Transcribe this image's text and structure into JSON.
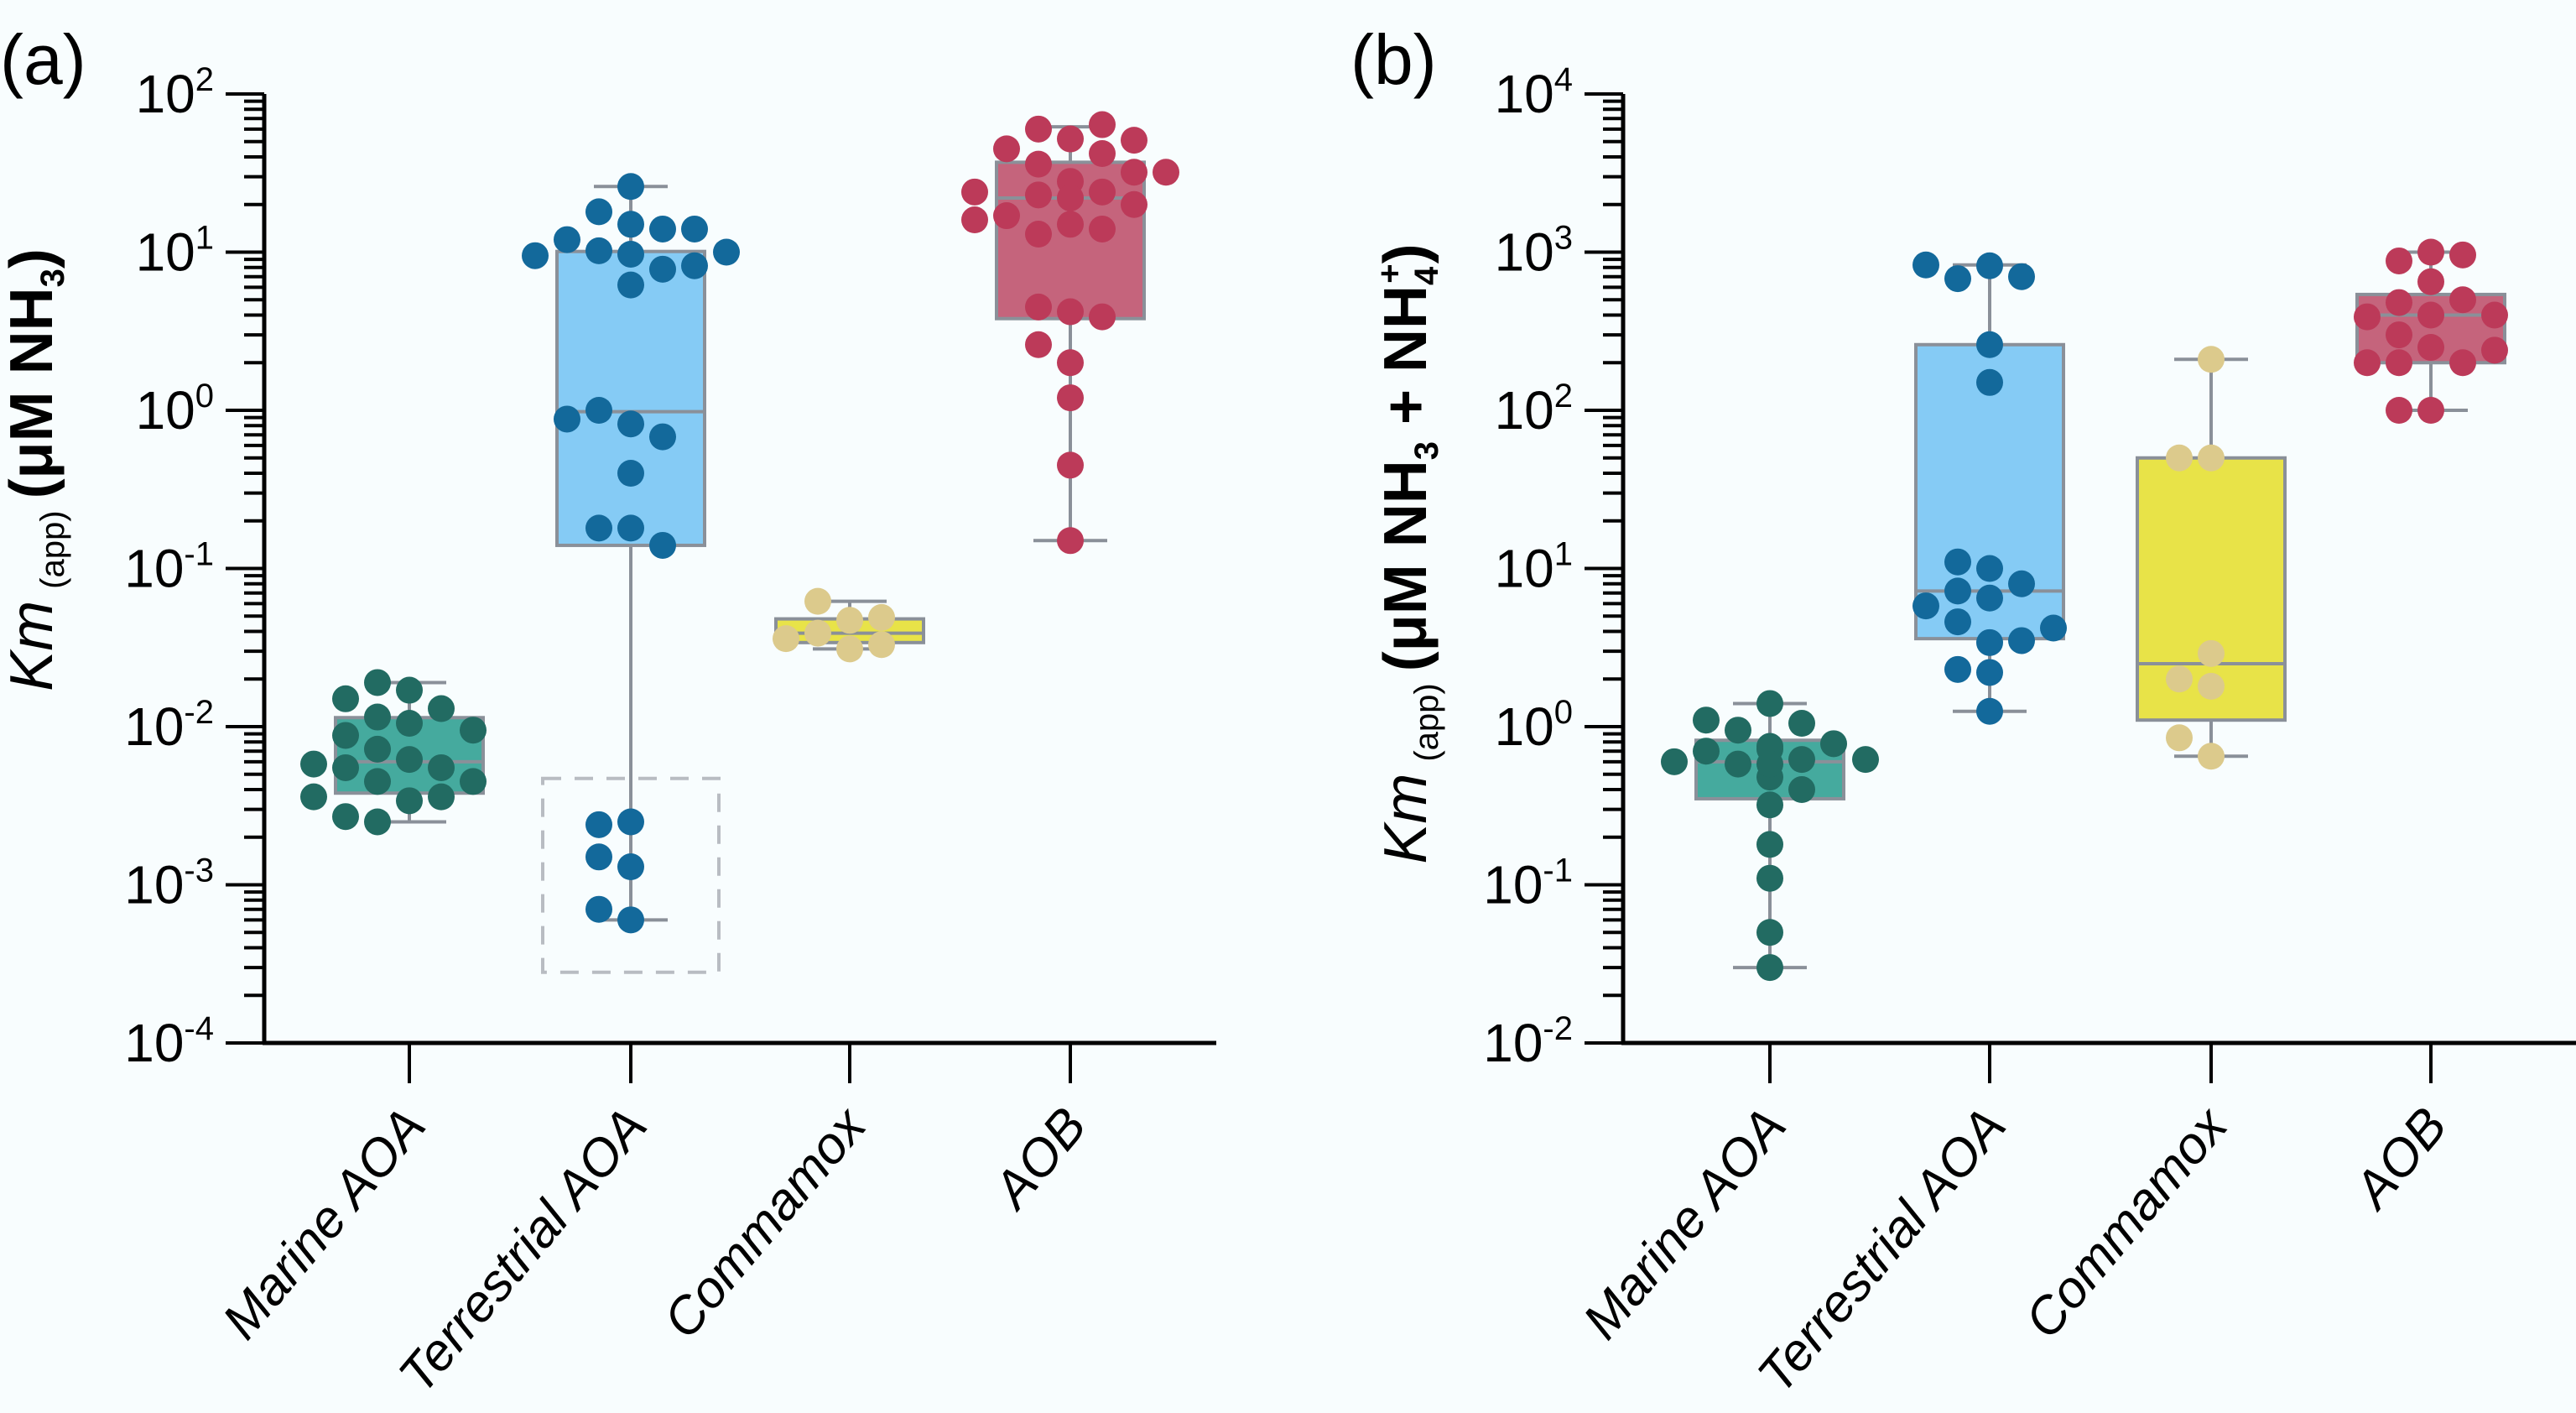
{
  "chart_data": [
    {
      "type": "box",
      "panel_label": "(a)",
      "title": "",
      "xlabel": "",
      "ylabel": "Km (app) (μM NH3)",
      "ylabel_parts": {
        "main": "Km",
        "sub": "(app)",
        "unit_open": "(μM NH",
        "unit_sub": "3",
        "unit_close": ")"
      },
      "yscale": "log",
      "ylim": [
        0.0001,
        100
      ],
      "y_ticks": [
        {
          "base": "10",
          "exp": "2",
          "value": 100
        },
        {
          "base": "10",
          "exp": "1",
          "value": 10
        },
        {
          "base": "10",
          "exp": "0",
          "value": 1
        },
        {
          "base": "10",
          "exp": "-1",
          "value": 0.1
        },
        {
          "base": "10",
          "exp": "-2",
          "value": 0.01
        },
        {
          "base": "10",
          "exp": "-3",
          "value": 0.001
        },
        {
          "base": "10",
          "exp": "-4",
          "value": 0.0001
        }
      ],
      "categories": [
        "Marine AOA",
        "Terrestrial AOA",
        "Commamox",
        "AOB"
      ],
      "grid": false,
      "series": [
        {
          "name": "Marine AOA",
          "fill": "#45aa9e",
          "point_color": "#226b62",
          "whisker_low": 0.0025,
          "q1": 0.0038,
          "median": 0.006,
          "q3": 0.0114,
          "whisker_high": 0.019,
          "points": [
            0.017,
            0.0115,
            0.0062,
            0.0045,
            0.0034,
            0.019,
            0.0105,
            0.0072,
            0.0055,
            0.0036,
            0.0025,
            0.013,
            0.0088,
            0.0055,
            0.0045,
            0.0027,
            0.015,
            0.0095,
            0.0058,
            0.0036
          ]
        },
        {
          "name": "Terrestrial AOA",
          "fill": "#85cbf5",
          "point_color": "#13699b",
          "whisker_low": 0.0006,
          "q1": 0.14,
          "median": 0.98,
          "q3": 10.1,
          "whisker_high": 26,
          "points": [
            15,
            10.2,
            14,
            9.7,
            7.8,
            0.82,
            0.18,
            0.0025,
            26,
            12,
            8.2,
            1.0,
            0.68,
            0.4,
            0.18,
            0.14,
            0.0024,
            0.0013,
            0.0006,
            18,
            14,
            9.5,
            6.2,
            0.88,
            0.0015,
            0.0007,
            10
          ]
        },
        {
          "name": "Commamox",
          "fill": "#e8e348",
          "point_color": "#dcca8c",
          "whisker_low": 0.031,
          "q1": 0.034,
          "median": 0.039,
          "q3": 0.048,
          "whisker_high": 0.062,
          "points": [
            0.047,
            0.031,
            0.039,
            0.049,
            0.033,
            0.062,
            0.036
          ]
        },
        {
          "name": "AOB",
          "fill": "#c5647c",
          "point_color": "#bc3a59",
          "whisker_low": 0.15,
          "q1": 3.8,
          "median": 22,
          "q3": 37,
          "whisker_high": 62,
          "points": [
            52,
            28,
            23,
            15,
            60,
            42,
            24,
            17,
            13,
            4.2,
            2.0,
            64,
            45,
            32,
            20,
            14,
            4.5,
            1.2,
            0.45,
            0.15,
            36,
            24,
            16,
            3.9,
            2.6,
            51,
            32,
            22
          ]
        }
      ],
      "annotations": [
        {
          "type": "dashed-rectangle",
          "category": "Terrestrial AOA",
          "y_range": [
            0.00028,
            0.0047
          ]
        }
      ]
    },
    {
      "type": "box",
      "panel_label": "(b)",
      "title": "",
      "xlabel": "",
      "ylabel": "Km (app) (μM NH3 + NH4+)",
      "ylabel_parts": {
        "main": "Km",
        "sub": "(app)",
        "unit_open": "(μM NH",
        "unit_sub": "3",
        "unit_mid": " + NH",
        "unit_sub2": "4",
        "unit_sup2": "+",
        "unit_close": ")"
      },
      "yscale": "log",
      "ylim": [
        0.01,
        10000
      ],
      "y_ticks": [
        {
          "base": "10",
          "exp": "4",
          "value": 10000
        },
        {
          "base": "10",
          "exp": "3",
          "value": 1000
        },
        {
          "base": "10",
          "exp": "2",
          "value": 100
        },
        {
          "base": "10",
          "exp": "1",
          "value": 10
        },
        {
          "base": "10",
          "exp": "0",
          "value": 1
        },
        {
          "base": "10",
          "exp": "-1",
          "value": 0.1
        },
        {
          "base": "10",
          "exp": "-2",
          "value": 0.01
        }
      ],
      "categories": [
        "Marine AOA",
        "Terrestrial AOA",
        "Commamox",
        "AOB"
      ],
      "grid": false,
      "series": [
        {
          "name": "Marine AOA",
          "fill": "#45aa9e",
          "point_color": "#226b62",
          "whisker_low": 0.03,
          "q1": 0.35,
          "median": 0.6,
          "q3": 0.82,
          "whisker_high": 1.4,
          "points": [
            0.72,
            0.58,
            0.62,
            0.95,
            0.7,
            0.48,
            0.32,
            1.05,
            0.78,
            0.6,
            0.4,
            1.4,
            1.1,
            0.62,
            0.75,
            0.58,
            0.18,
            0.11,
            0.05,
            0.03
          ]
        },
        {
          "name": "Terrestrial AOA",
          "fill": "#85cbf5",
          "point_color": "#13699b",
          "whisker_low": 1.25,
          "q1": 3.6,
          "median": 7.2,
          "q3": 260,
          "whisker_high": 830,
          "points": [
            820,
            6.5,
            680,
            10,
            7.2,
            4.6,
            3.4,
            2.2,
            260,
            150,
            1.25,
            700,
            11,
            8.0,
            5.8,
            3.5,
            2.3,
            830,
            4.2
          ]
        },
        {
          "name": "Commamox",
          "fill": "#e8e348",
          "point_color": "#dcca8c",
          "whisker_low": 0.65,
          "q1": 1.1,
          "median": 2.5,
          "q3": 50,
          "whisker_high": 210,
          "points": [
            50,
            1.8,
            0.65,
            210,
            2.9,
            50,
            2.0,
            0.85
          ]
        },
        {
          "name": "AOB",
          "fill": "#c5647c",
          "point_color": "#bc3a59",
          "whisker_low": 100,
          "q1": 200,
          "median": 400,
          "q3": 540,
          "whisker_high": 1000,
          "points": [
            400,
            1000,
            480,
            250,
            200,
            100,
            880,
            500,
            300,
            200,
            960,
            650,
            390,
            200,
            100,
            400,
            240
          ]
        }
      ],
      "annotations": []
    }
  ]
}
